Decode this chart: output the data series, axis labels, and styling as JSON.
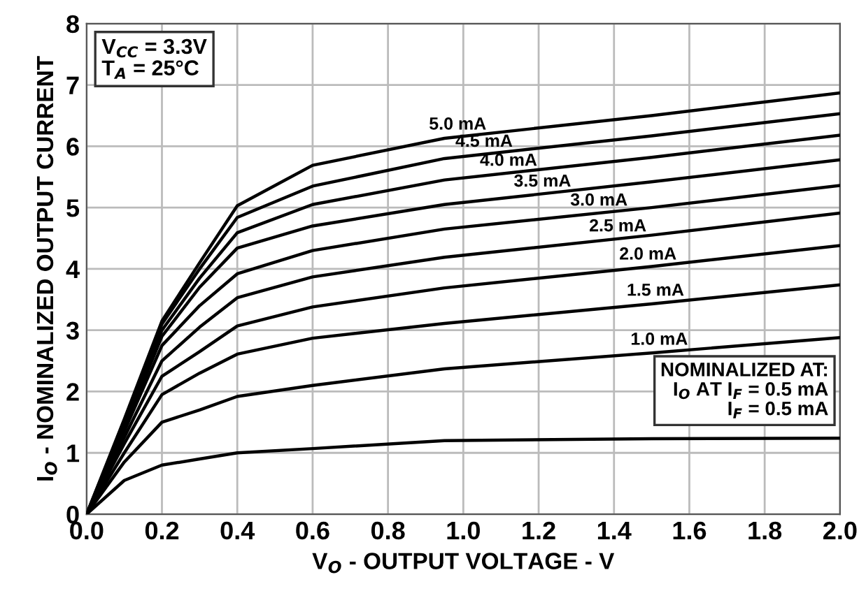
{
  "chart_data": {
    "type": "line",
    "xlabel": "V$_{O}$ - OUTPUT VOLTAGE - V",
    "ylabel": "I$_{O}$ - NOMINALIZED OUTPUT CURRENT",
    "x": [
      0,
      0.1,
      0.2,
      0.3,
      0.4,
      0.6,
      0.95,
      1.5,
      2.0
    ],
    "series": [
      {
        "color": "#000000",
        "values": [
          0,
          0.55,
          0.8,
          0.9,
          1.0,
          1.07,
          1.2,
          1.23,
          1.24
        ]
      },
      {
        "color": "#000000",
        "values": [
          0,
          0.85,
          1.5,
          1.7,
          1.92,
          2.1,
          2.37,
          2.63,
          2.88
        ]
      },
      {
        "color": "#000000",
        "values": [
          0,
          1.0,
          1.95,
          2.3,
          2.61,
          2.87,
          3.11,
          3.43,
          3.74
        ]
      },
      {
        "color": "#000000",
        "values": [
          0,
          1.15,
          2.25,
          2.65,
          3.07,
          3.38,
          3.69,
          4.04,
          4.38
        ]
      },
      {
        "color": "#000000",
        "values": [
          0,
          1.25,
          2.5,
          3.05,
          3.53,
          3.87,
          4.19,
          4.55,
          4.91
        ]
      },
      {
        "color": "#000000",
        "values": [
          0,
          1.35,
          2.75,
          3.4,
          3.92,
          4.3,
          4.65,
          5.0,
          5.36
        ]
      },
      {
        "color": "#000000",
        "values": [
          0,
          1.4,
          2.9,
          3.7,
          4.34,
          4.7,
          5.05,
          5.42,
          5.78
        ]
      },
      {
        "color": "#000000",
        "values": [
          0,
          1.45,
          3.0,
          3.85,
          4.59,
          5.05,
          5.45,
          5.82,
          6.18
        ]
      },
      {
        "color": "#000000",
        "values": [
          0,
          1.5,
          3.1,
          4.0,
          4.84,
          5.35,
          5.8,
          6.17,
          6.53
        ]
      },
      {
        "color": "#000000",
        "values": [
          0,
          1.55,
          3.15,
          4.1,
          5.03,
          5.69,
          6.13,
          6.5,
          6.87
        ]
      }
    ],
    "annotations": [
      "V$_{CC}$ = 3.3V\nT$_{A}$ = 25°C",
      "NOMINALIZED AT:\nI$_{O}$ AT I$_{F}$ = 0.5 mA\nI$_{F}$ = 0.5 mA",
      {
        "text": "1.0 mA",
        "x": 1.52,
        "y": 2.64
      },
      {
        "text": "1.5 mA",
        "x": 1.51,
        "y": 3.44
      },
      {
        "text": "2.0 mA",
        "x": 1.49,
        "y": 4.03
      },
      {
        "text": "2.5 mA",
        "x": 1.41,
        "y": 4.49
      },
      {
        "text": "3.0 mA",
        "x": 1.36,
        "y": 4.91
      },
      {
        "text": "3.5 mA",
        "x": 1.21,
        "y": 5.22
      },
      {
        "text": "4.0 mA",
        "x": 1.12,
        "y": 5.56
      },
      {
        "text": "4.5 mA",
        "x": 1.055,
        "y": 5.87
      },
      {
        "text": "5.0 mA",
        "x": 0.985,
        "y": 6.15
      }
    ],
    "xlim": [
      0,
      2.0
    ],
    "ylim": [
      0,
      8
    ],
    "xticks": [
      {
        "value": 0,
        "label": "0.0"
      },
      0.2,
      0.4,
      0.6,
      0.8,
      {
        "value": 1.0,
        "label": "1.0"
      },
      1.2,
      1.4,
      1.6,
      1.8,
      {
        "value": 2.0,
        "label": "2.0"
      }
    ],
    "yticks": [
      0,
      1,
      2,
      3,
      4,
      5,
      6,
      7,
      8
    ],
    "grid": true,
    "legend": false,
    "marker": "none",
    "line_style": "solid"
  }
}
